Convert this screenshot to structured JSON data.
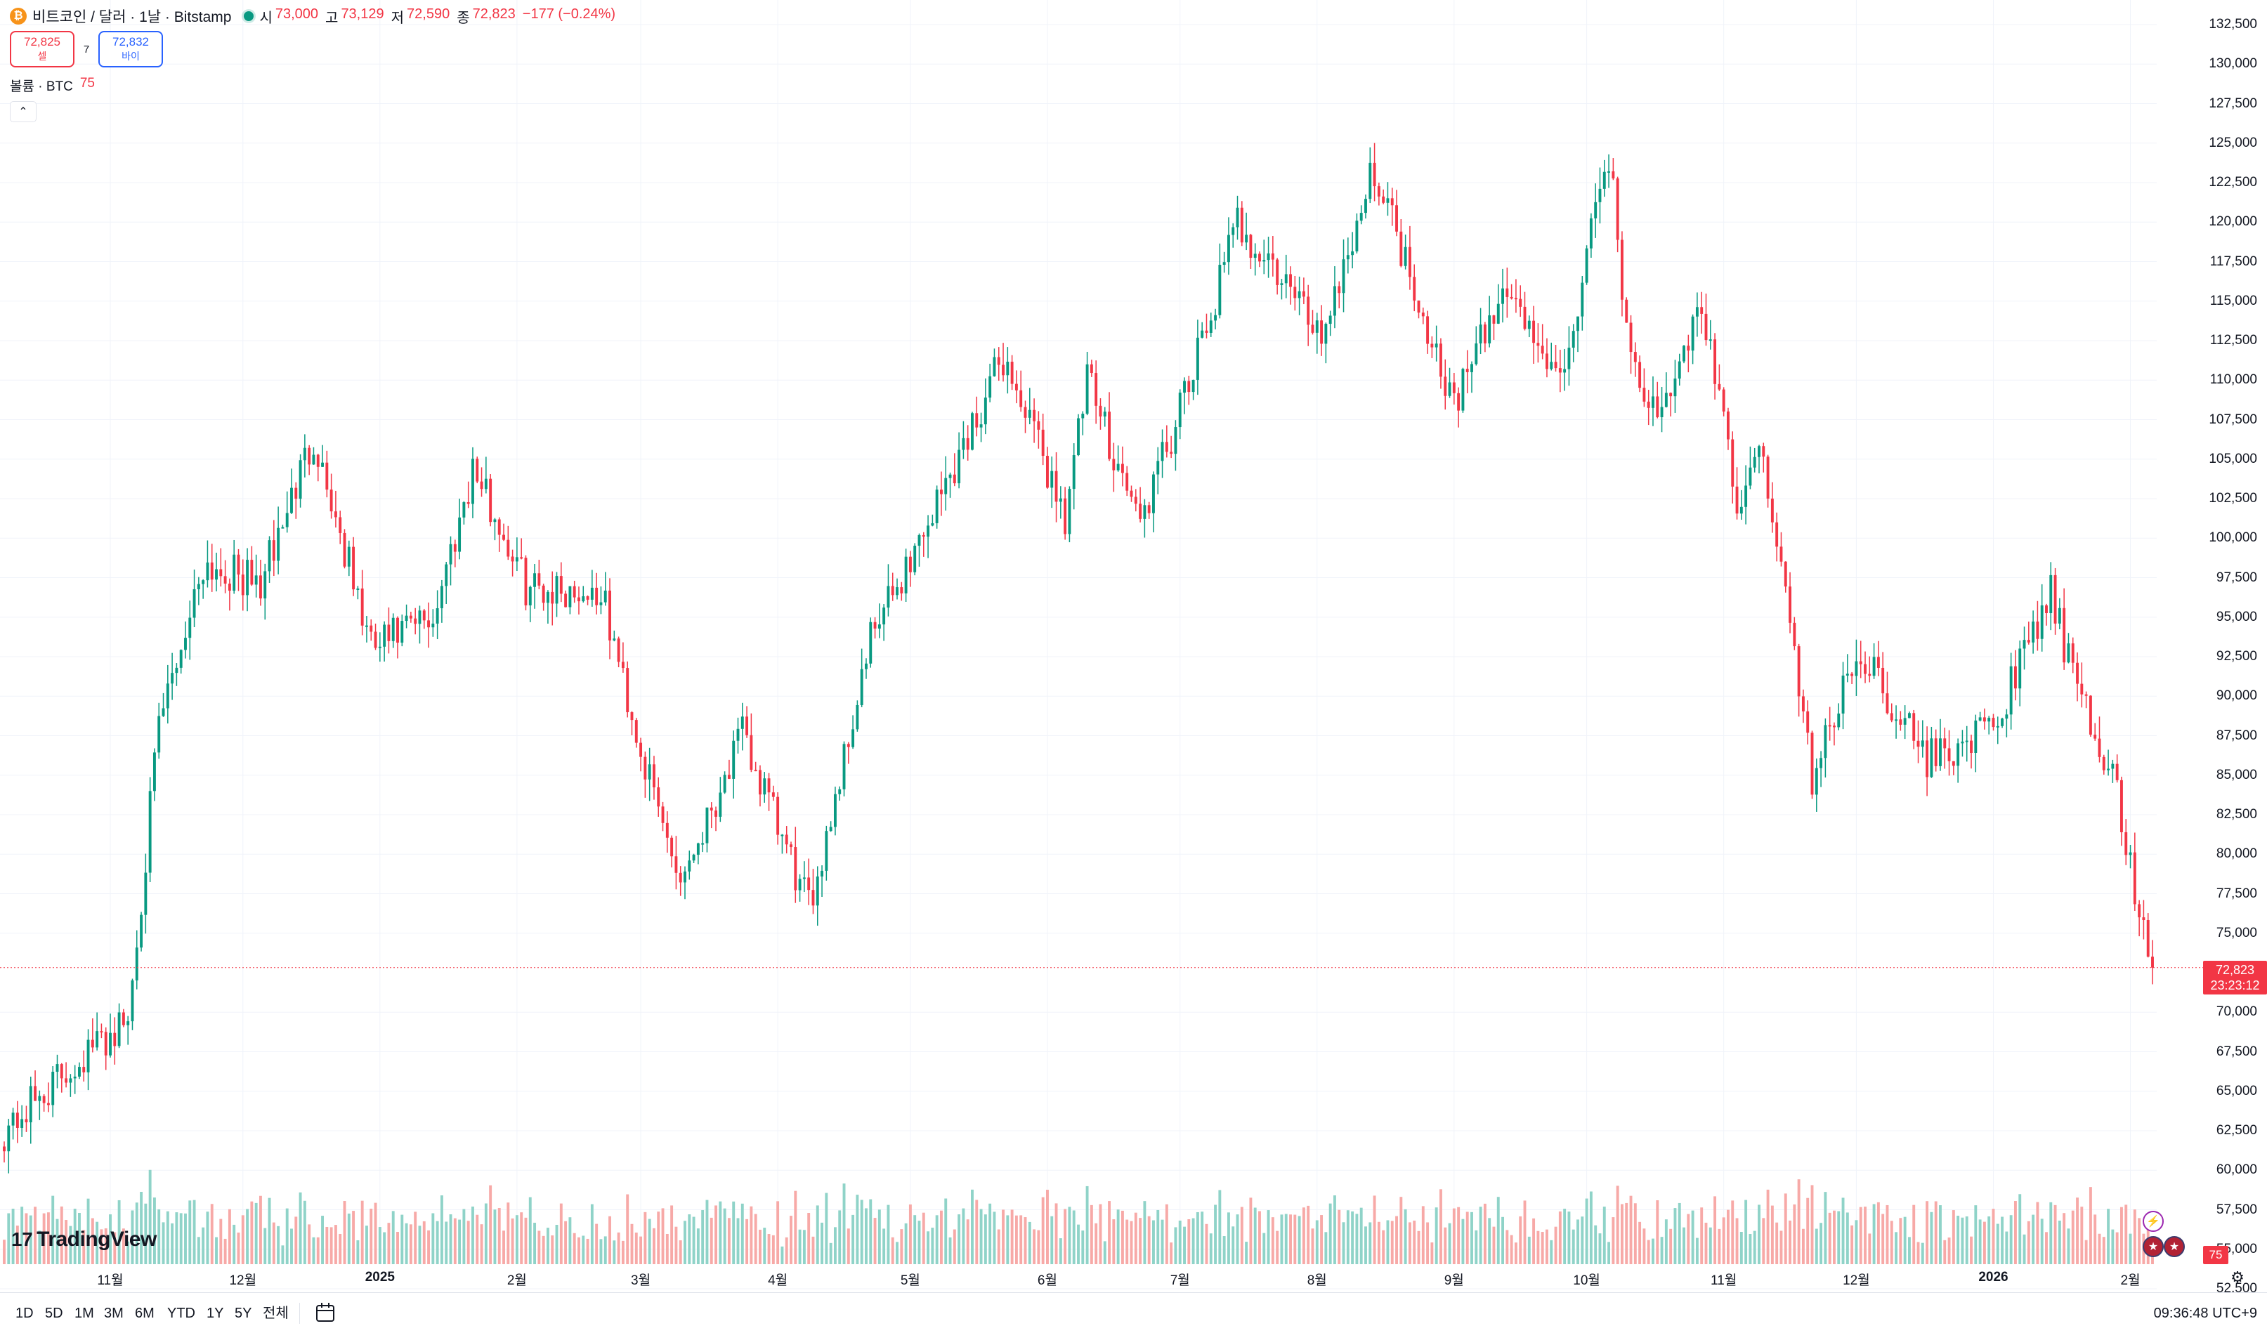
{
  "header": {
    "coin_glyph": "₿",
    "title": "비트코인 / 달러 · 1날 · Bitstamp",
    "ohlc": [
      {
        "key": "시",
        "value": "73,000"
      },
      {
        "key": "고",
        "value": "73,129"
      },
      {
        "key": "저",
        "value": "72,590"
      },
      {
        "key": "종",
        "value": "72,823"
      },
      {
        "key": "",
        "value": "−177 (−0.24%)"
      }
    ]
  },
  "trade": {
    "sell_price": "72,825",
    "sell_label": "셀",
    "spread": "7",
    "buy_price": "72,832",
    "buy_label": "바이"
  },
  "volume_legend": {
    "label": "볼륨 · BTC",
    "value": "75"
  },
  "collapse_glyph": "⌃",
  "price_tag": {
    "price": "72,823",
    "countdown": "23:23:12"
  },
  "volume_tag": "75",
  "y_axis_labels": [
    "132,500",
    "130,000",
    "127,500",
    "125,000",
    "122,500",
    "120,000",
    "117,500",
    "115,000",
    "112,500",
    "110,000",
    "107,500",
    "105,000",
    "102,500",
    "100,000",
    "97,500",
    "95,000",
    "92,500",
    "90,000",
    "87,500",
    "85,000",
    "82,500",
    "80,000",
    "77,500",
    "75,000",
    "70,000",
    "67,500",
    "65,000",
    "62,500",
    "60,000",
    "57,500",
    "55,000",
    "52,500"
  ],
  "x_axis_labels": [
    {
      "text": "11월",
      "bold": false
    },
    {
      "text": "12월",
      "bold": false
    },
    {
      "text": "2025",
      "bold": true
    },
    {
      "text": "2월",
      "bold": false
    },
    {
      "text": "3월",
      "bold": false
    },
    {
      "text": "4월",
      "bold": false
    },
    {
      "text": "5월",
      "bold": false
    },
    {
      "text": "6월",
      "bold": false
    },
    {
      "text": "7월",
      "bold": false
    },
    {
      "text": "8월",
      "bold": false
    },
    {
      "text": "9월",
      "bold": false
    },
    {
      "text": "10월",
      "bold": false
    },
    {
      "text": "11월",
      "bold": false
    },
    {
      "text": "12월",
      "bold": false
    },
    {
      "text": "2026",
      "bold": true
    },
    {
      "text": "2월",
      "bold": false
    }
  ],
  "range_buttons": [
    "1D",
    "5D",
    "1M",
    "3M",
    "6M",
    "YTD",
    "1Y",
    "5Y",
    "전체"
  ],
  "clock": "09:36:48 UTC+9",
  "brand": {
    "mark": "17",
    "name": "TradingView"
  },
  "colors": {
    "up": "#089981",
    "down": "#f23645",
    "up_volume": "#8fd3c8",
    "down_volume": "#f7a9a7",
    "grid": "#f0f3fa"
  },
  "chart_data": {
    "type": "candlestick",
    "symbol": "BTC/USD",
    "interval": "1D",
    "exchange": "Bitstamp",
    "y_range": [
      52500,
      132500
    ],
    "x_range": [
      "2024-10-08",
      "2026-02-06"
    ],
    "last_close": 72823,
    "anchors": [
      {
        "date": "2024-10-08",
        "close": 62500
      },
      {
        "date": "2024-10-25",
        "close": 67000
      },
      {
        "date": "2024-11-05",
        "close": 69500
      },
      {
        "date": "2024-11-12",
        "close": 88000
      },
      {
        "date": "2024-11-22",
        "close": 98500
      },
      {
        "date": "2024-12-05",
        "close": 97000
      },
      {
        "date": "2024-12-17",
        "close": 106500
      },
      {
        "date": "2024-12-30",
        "close": 93000
      },
      {
        "date": "2025-01-13",
        "close": 95000
      },
      {
        "date": "2025-01-22",
        "close": 104500
      },
      {
        "date": "2025-02-03",
        "close": 97000
      },
      {
        "date": "2025-02-20",
        "close": 96500
      },
      {
        "date": "2025-03-03",
        "close": 84500
      },
      {
        "date": "2025-03-10",
        "close": 78500
      },
      {
        "date": "2025-03-24",
        "close": 87500
      },
      {
        "date": "2025-04-08",
        "close": 76500
      },
      {
        "date": "2025-04-22",
        "close": 93500
      },
      {
        "date": "2025-05-10",
        "close": 104000
      },
      {
        "date": "2025-05-22",
        "close": 111500
      },
      {
        "date": "2025-06-05",
        "close": 101500
      },
      {
        "date": "2025-06-10",
        "close": 110000
      },
      {
        "date": "2025-06-22",
        "close": 101000
      },
      {
        "date": "2025-07-03",
        "close": 109500
      },
      {
        "date": "2025-07-14",
        "close": 120000
      },
      {
        "date": "2025-08-02",
        "close": 113000
      },
      {
        "date": "2025-08-14",
        "close": 123500
      },
      {
        "date": "2025-09-01",
        "close": 108500
      },
      {
        "date": "2025-09-13",
        "close": 116000
      },
      {
        "date": "2025-09-25",
        "close": 109500
      },
      {
        "date": "2025-10-06",
        "close": 124500
      },
      {
        "date": "2025-10-10",
        "close": 113000
      },
      {
        "date": "2025-10-17",
        "close": 107000
      },
      {
        "date": "2025-10-27",
        "close": 115000
      },
      {
        "date": "2025-11-04",
        "close": 102000
      },
      {
        "date": "2025-11-10",
        "close": 105500
      },
      {
        "date": "2025-11-21",
        "close": 85000
      },
      {
        "date": "2025-12-02",
        "close": 93000
      },
      {
        "date": "2025-12-17",
        "close": 86000
      },
      {
        "date": "2026-01-01",
        "close": 88000
      },
      {
        "date": "2026-01-14",
        "close": 96500
      },
      {
        "date": "2026-01-20",
        "close": 90000
      },
      {
        "date": "2026-01-25",
        "close": 87000
      },
      {
        "date": "2026-01-29",
        "close": 84000
      },
      {
        "date": "2026-02-02",
        "close": 77500
      },
      {
        "date": "2026-02-06",
        "close": 72823
      }
    ],
    "volume_btc_last": 75
  }
}
